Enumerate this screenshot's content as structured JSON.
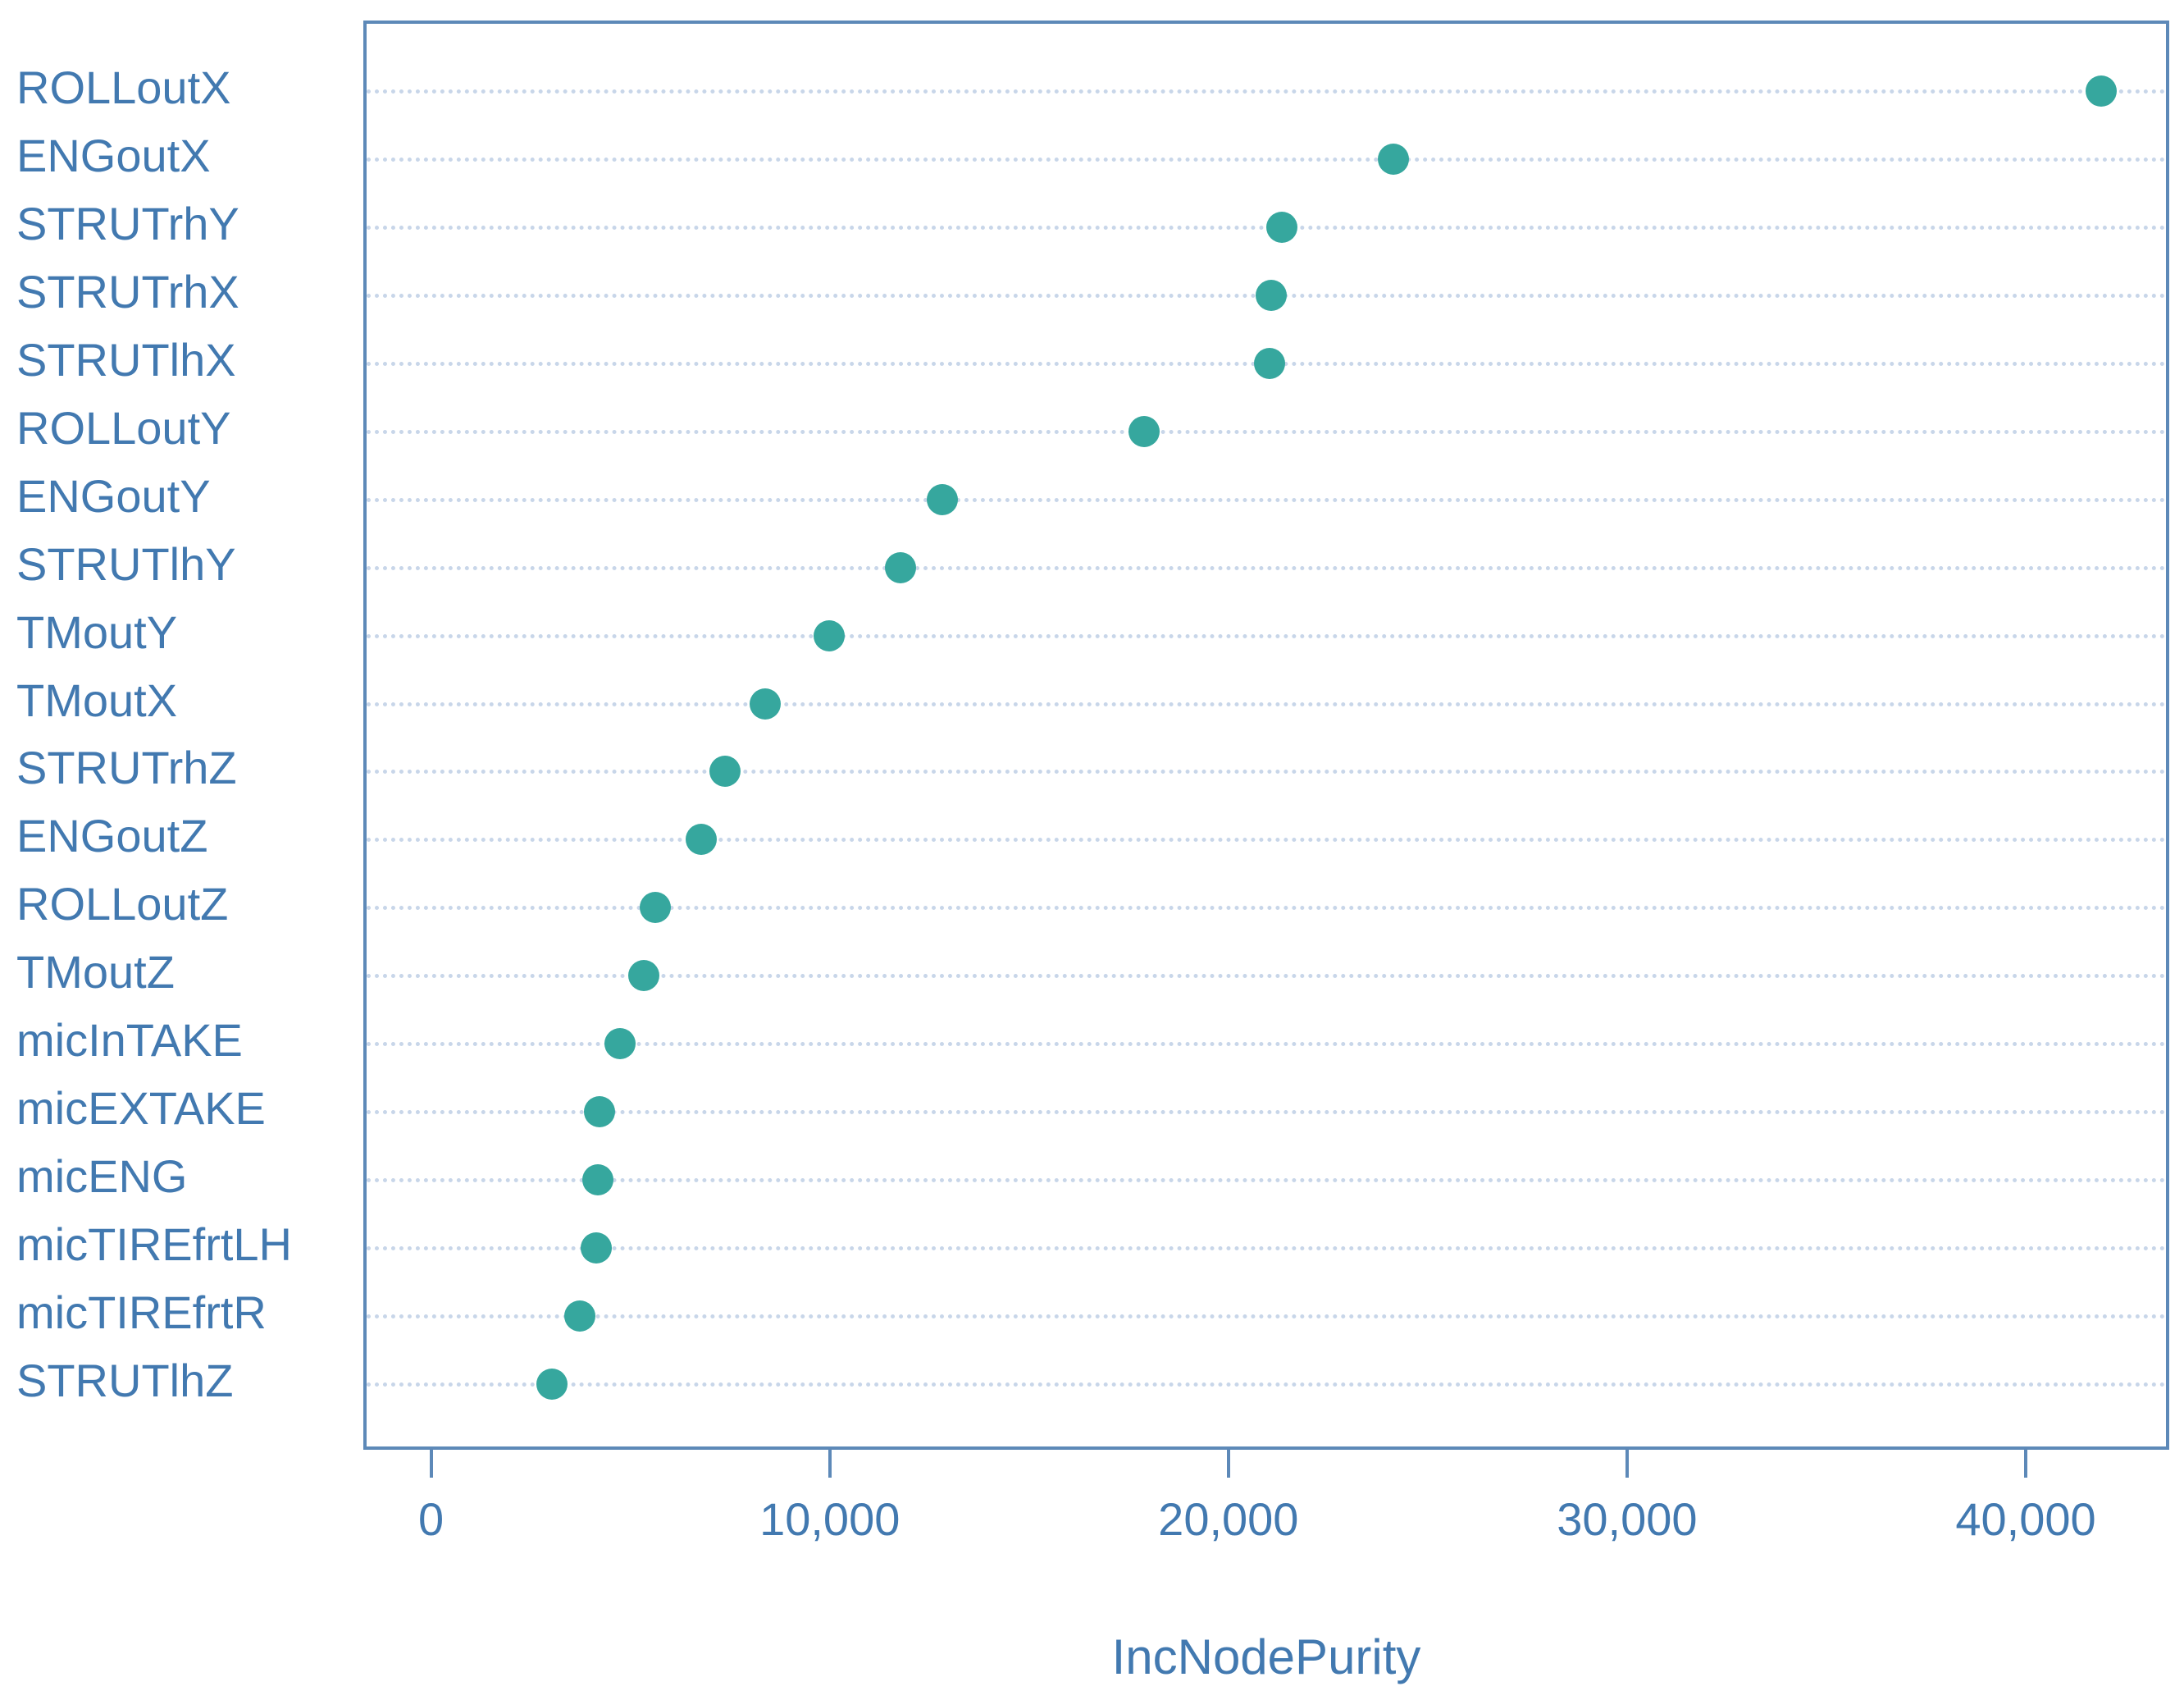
{
  "colors": {
    "dot": "#36a79e",
    "text": "#4279b0",
    "box_border": "#5d89b8",
    "grid": "#c8d6e9",
    "background": "#ffffff"
  },
  "chart_data": {
    "type": "scatter",
    "subtype": "dotplot-variable-importance",
    "categories": [
      "ROLLoutX",
      "ENGoutX",
      "STRUTrhY",
      "STRUTrhX",
      "STRUTlhX",
      "ROLLoutY",
      "ENGoutY",
      "STRUTlhY",
      "TMoutY",
      "TMoutX",
      "STRUTrhZ",
      "ENGoutZ",
      "ROLLoutZ",
      "TMoutZ",
      "micInTAKE",
      "micEXTAKE",
      "micENG",
      "micTIREfrtLH",
      "micTIREfrtR",
      "STRUTlhZ"
    ],
    "values": [
      41800,
      24050,
      21250,
      21000,
      20950,
      17800,
      12750,
      11700,
      9900,
      8300,
      7300,
      6700,
      5550,
      5250,
      4650,
      4150,
      4100,
      4050,
      3650,
      2950
    ],
    "title": "",
    "xlabel": "IncNodePurity",
    "ylabel": "",
    "xlim": [
      -1700,
      43600
    ],
    "x_ticks": [
      {
        "value": 0,
        "label": "0"
      },
      {
        "value": 10000,
        "label": "10,000"
      },
      {
        "value": 20000,
        "label": "20,000"
      },
      {
        "value": 30000,
        "label": "30,000"
      },
      {
        "value": 40000,
        "label": "40,000"
      }
    ],
    "grid": "dotted-horizontal",
    "legend": "none"
  }
}
